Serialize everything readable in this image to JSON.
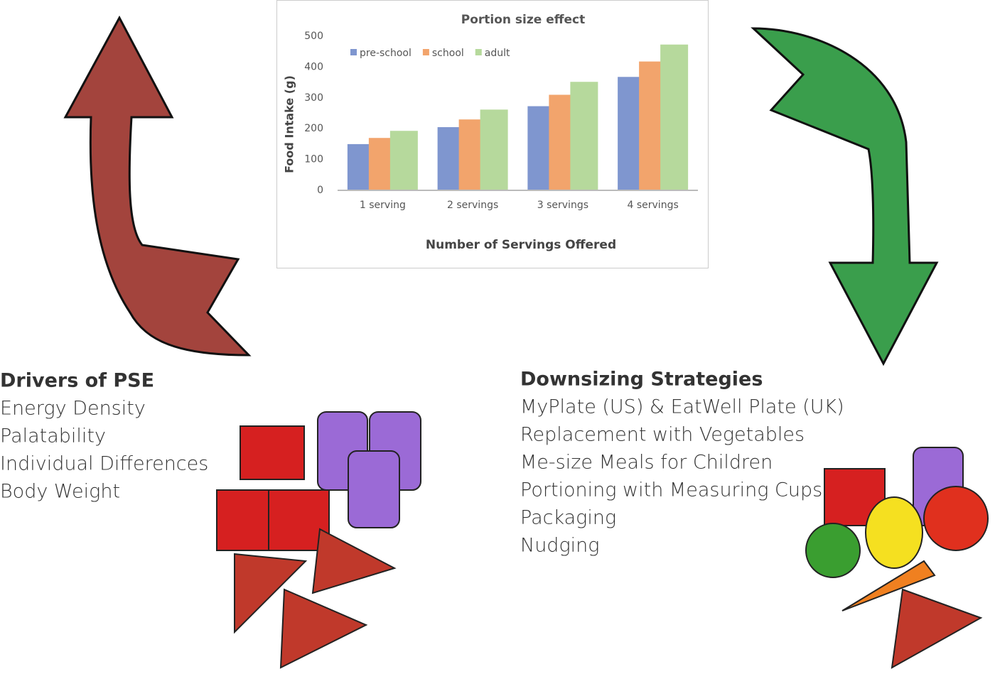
{
  "chart_data": {
    "type": "bar",
    "title": "Portion size effect",
    "x_label": "Number of Servings Offered",
    "y_label": "Food Intake (g)",
    "categories": [
      "1 serving",
      "2 servings",
      "3 servings",
      "4 servings"
    ],
    "series": [
      {
        "name": "pre-school",
        "color": "#7f96cf",
        "values": [
          150,
          205,
          273,
          368
        ]
      },
      {
        "name": "school",
        "color": "#f2a46c",
        "values": [
          170,
          230,
          310,
          418
        ]
      },
      {
        "name": "adult",
        "color": "#b6d99c",
        "values": [
          193,
          262,
          352,
          473
        ]
      }
    ],
    "ylim": [
      0,
      500
    ],
    "yticks": [
      0,
      100,
      200,
      300,
      400,
      500
    ],
    "legend": "top-left"
  },
  "drivers": {
    "title": "Drivers of PSE",
    "items": [
      "Energy Density",
      "Palatability",
      "Individual Differences",
      "Body Weight"
    ]
  },
  "strategies": {
    "title": "Downsizing Strategies",
    "items": [
      "MyPlate (US) & EatWell Plate (UK)",
      "Replacement with Vegetables",
      "Me-size Meals for Children",
      "Portioning with Measuring Cups",
      "Packaging",
      "Nudging"
    ]
  }
}
